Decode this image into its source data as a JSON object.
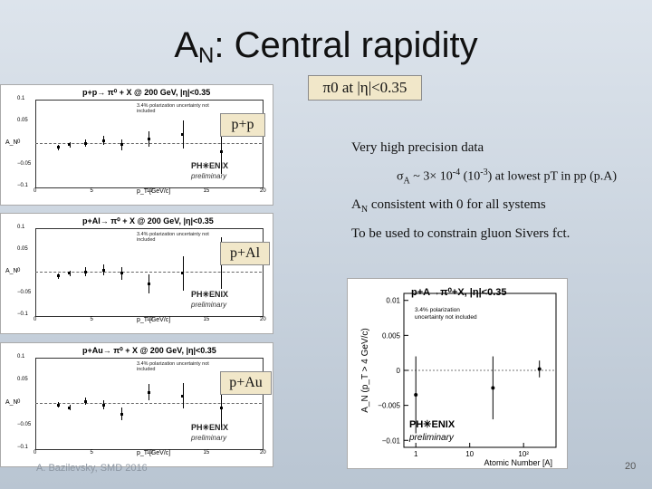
{
  "slide": {
    "title_main": "A",
    "title_sub": "N",
    "title_rest": ": Central rapidity",
    "subtitle": "π0 at |η|<0.35",
    "bullets": {
      "b1": "Very high precision data",
      "b2_a": "σ",
      "b2_asub": "A",
      "b2_b": " ~ 3× 10",
      "b2_bsup": "-4",
      "b2_c": " (10",
      "b2_csup": "-3",
      "b2_d": ") at lowest pT in pp (p.A)",
      "b3_a": "A",
      "b3_asub": "N",
      "b3_b": " consistent with 0 for all systems",
      "b4": "To be used to constrain gluon Sivers fct."
    },
    "labels": {
      "pp": "p+p",
      "pal": "p+Al",
      "pau": "p+Au"
    },
    "footer_left": "A. Bazilevsky, SMD 2016",
    "page_number": "20"
  },
  "left_plots": [
    {
      "title": "p+p→ π⁰ + X @ 200 GeV, |η|<0.35",
      "ylabel": "A_N",
      "xlabel": "p_T [GeV/c]",
      "yticks": [
        "0.1",
        "0.05",
        "0",
        "−0.05",
        "−0.1"
      ],
      "xticks": [
        "0",
        "5",
        "10",
        "15",
        "20"
      ],
      "note": "3.4% polarization uncertainty not included",
      "logo": "PH✳ENIX",
      "prelim": "preliminary"
    },
    {
      "title": "p+Al→ π⁰ + X @ 200 GeV, |η|<0.35",
      "ylabel": "A_N",
      "xlabel": "p_T [GeV/c]",
      "yticks": [
        "0.1",
        "0.05",
        "0",
        "−0.05",
        "−0.1"
      ],
      "xticks": [
        "0",
        "5",
        "10",
        "15",
        "20"
      ],
      "note": "3.4% polarization uncertainty not included",
      "logo": "PH✳ENIX",
      "prelim": "preliminary"
    },
    {
      "title": "p+Au→ π⁰ + X @ 200 GeV, |η|<0.35",
      "ylabel": "A_N",
      "xlabel": "p_T [GeV/c]",
      "yticks": [
        "0.1",
        "0.05",
        "0",
        "−0.05",
        "−0.1"
      ],
      "xticks": [
        "0",
        "5",
        "10",
        "15",
        "20"
      ],
      "note": "3.4% polarization uncertainty not included",
      "logo": "PH✳ENIX",
      "prelim": "preliminary"
    }
  ],
  "chart_data": {
    "type": "scatter",
    "title": "p+A→π⁰+X, |η|<0.35",
    "xlabel": "Atomic Number [A]",
    "ylabel": "A_N (p_T > 4 GeV/c)",
    "xscale": "log",
    "xlim": [
      0.6,
      400
    ],
    "ylim": [
      -0.011,
      0.011
    ],
    "xtick_labels": [
      "1",
      "10",
      "10²"
    ],
    "ytick_labels": [
      "0.01",
      "0.005",
      "0",
      "−0.005",
      "−0.01"
    ],
    "annotation": "3.4% polarization uncertainty not included",
    "logo": "PH✳ENIX",
    "prelim": "preliminary",
    "points": [
      {
        "x": 1,
        "y": -0.0035,
        "err": 0.0055
      },
      {
        "x": 27,
        "y": -0.0025,
        "err": 0.0045
      },
      {
        "x": 197,
        "y": 0.0002,
        "err": 0.0012
      }
    ],
    "colors": {
      "points": "#000000"
    }
  }
}
